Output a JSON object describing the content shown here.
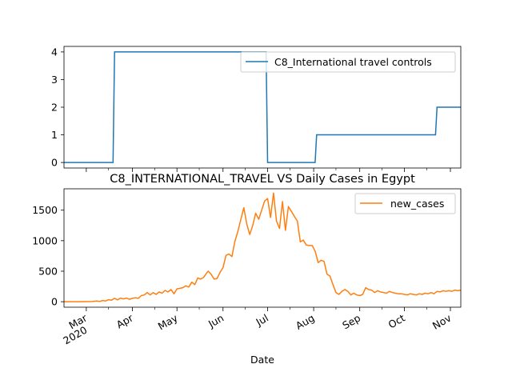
{
  "chart_data": [
    {
      "type": "line",
      "title": "",
      "xlabel": "",
      "ylabel": "",
      "ylim": [
        -0.2,
        4.2
      ],
      "yticks": [
        0,
        1,
        2,
        3,
        4
      ],
      "legend_placement": "top-right",
      "grid": false,
      "series": [
        {
          "name": "C8_International travel controls",
          "color": "#1f77b4",
          "points": [
            [
              "2020-02-15",
              0
            ],
            [
              "2020-03-19",
              0
            ],
            [
              "2020-03-20",
              4
            ],
            [
              "2020-06-30",
              4
            ],
            [
              "2020-07-01",
              0
            ],
            [
              "2020-08-02",
              0
            ],
            [
              "2020-08-03",
              1
            ],
            [
              "2020-10-22",
              1
            ],
            [
              "2020-10-23",
              2
            ],
            [
              "2020-11-08",
              2
            ]
          ]
        }
      ]
    },
    {
      "type": "line",
      "title": "C8_INTERNATIONAL_TRAVEL VS Daily Cases in Egypt",
      "xlabel": "Date",
      "ylabel": "",
      "ylim": [
        -90,
        1850
      ],
      "yticks": [
        0,
        500,
        1000,
        1500
      ],
      "legend_placement": "top-right",
      "grid": false,
      "x_tick_labels": [
        {
          "date": "2020-03-01",
          "label": "Mar",
          "sub": "2020"
        },
        {
          "date": "2020-04-01",
          "label": "Apr",
          "sub": ""
        },
        {
          "date": "2020-05-01",
          "label": "May",
          "sub": ""
        },
        {
          "date": "2020-06-01",
          "label": "Jun",
          "sub": ""
        },
        {
          "date": "2020-07-01",
          "label": "Jul",
          "sub": ""
        },
        {
          "date": "2020-08-01",
          "label": "Aug",
          "sub": ""
        },
        {
          "date": "2020-09-01",
          "label": "Sep",
          "sub": ""
        },
        {
          "date": "2020-10-01",
          "label": "Oct",
          "sub": ""
        },
        {
          "date": "2020-11-01",
          "label": "Nov",
          "sub": ""
        }
      ],
      "series": [
        {
          "name": "new_cases",
          "color": "#ff7f0e",
          "points": [
            [
              "2020-02-15",
              0
            ],
            [
              "2020-02-25",
              0
            ],
            [
              "2020-03-05",
              3
            ],
            [
              "2020-03-08",
              12
            ],
            [
              "2020-03-10",
              5
            ],
            [
              "2020-03-12",
              20
            ],
            [
              "2020-03-14",
              12
            ],
            [
              "2020-03-16",
              33
            ],
            [
              "2020-03-18",
              25
            ],
            [
              "2020-03-20",
              55
            ],
            [
              "2020-03-22",
              30
            ],
            [
              "2020-03-24",
              60
            ],
            [
              "2020-03-26",
              45
            ],
            [
              "2020-03-28",
              60
            ],
            [
              "2020-03-30",
              40
            ],
            [
              "2020-04-01",
              55
            ],
            [
              "2020-04-03",
              65
            ],
            [
              "2020-04-05",
              55
            ],
            [
              "2020-04-07",
              100
            ],
            [
              "2020-04-09",
              110
            ],
            [
              "2020-04-11",
              150
            ],
            [
              "2020-04-13",
              110
            ],
            [
              "2020-04-15",
              150
            ],
            [
              "2020-04-17",
              120
            ],
            [
              "2020-04-19",
              160
            ],
            [
              "2020-04-21",
              140
            ],
            [
              "2020-04-23",
              185
            ],
            [
              "2020-04-25",
              160
            ],
            [
              "2020-04-27",
              200
            ],
            [
              "2020-04-29",
              130
            ],
            [
              "2020-05-01",
              210
            ],
            [
              "2020-05-03",
              220
            ],
            [
              "2020-05-05",
              230
            ],
            [
              "2020-05-07",
              260
            ],
            [
              "2020-05-09",
              240
            ],
            [
              "2020-05-11",
              320
            ],
            [
              "2020-05-13",
              280
            ],
            [
              "2020-05-15",
              390
            ],
            [
              "2020-05-17",
              370
            ],
            [
              "2020-05-19",
              400
            ],
            [
              "2020-05-21",
              470
            ],
            [
              "2020-05-22",
              500
            ],
            [
              "2020-05-24",
              450
            ],
            [
              "2020-05-26",
              370
            ],
            [
              "2020-05-28",
              380
            ],
            [
              "2020-05-30",
              480
            ],
            [
              "2020-06-01",
              560
            ],
            [
              "2020-06-03",
              760
            ],
            [
              "2020-06-05",
              780
            ],
            [
              "2020-06-07",
              740
            ],
            [
              "2020-06-09",
              990
            ],
            [
              "2020-06-11",
              1150
            ],
            [
              "2020-06-13",
              1350
            ],
            [
              "2020-06-15",
              1540
            ],
            [
              "2020-06-17",
              1270
            ],
            [
              "2020-06-19",
              1100
            ],
            [
              "2020-06-21",
              1250
            ],
            [
              "2020-06-23",
              1450
            ],
            [
              "2020-06-25",
              1350
            ],
            [
              "2020-06-27",
              1500
            ],
            [
              "2020-06-29",
              1650
            ],
            [
              "2020-07-01",
              1690
            ],
            [
              "2020-07-03",
              1380
            ],
            [
              "2020-07-05",
              1780
            ],
            [
              "2020-07-07",
              1320
            ],
            [
              "2020-07-09",
              1200
            ],
            [
              "2020-07-11",
              1640
            ],
            [
              "2020-07-13",
              1170
            ],
            [
              "2020-07-15",
              1560
            ],
            [
              "2020-07-17",
              1480
            ],
            [
              "2020-07-19",
              1400
            ],
            [
              "2020-07-21",
              1320
            ],
            [
              "2020-07-23",
              980
            ],
            [
              "2020-07-25",
              1010
            ],
            [
              "2020-07-27",
              930
            ],
            [
              "2020-07-29",
              920
            ],
            [
              "2020-07-31",
              920
            ],
            [
              "2020-08-02",
              830
            ],
            [
              "2020-08-04",
              640
            ],
            [
              "2020-08-06",
              680
            ],
            [
              "2020-08-08",
              660
            ],
            [
              "2020-08-10",
              450
            ],
            [
              "2020-08-12",
              420
            ],
            [
              "2020-08-14",
              280
            ],
            [
              "2020-08-16",
              150
            ],
            [
              "2020-08-18",
              120
            ],
            [
              "2020-08-20",
              170
            ],
            [
              "2020-08-22",
              200
            ],
            [
              "2020-08-24",
              170
            ],
            [
              "2020-08-26",
              110
            ],
            [
              "2020-08-28",
              140
            ],
            [
              "2020-08-30",
              110
            ],
            [
              "2020-09-01",
              100
            ],
            [
              "2020-09-03",
              120
            ],
            [
              "2020-09-05",
              230
            ],
            [
              "2020-09-07",
              200
            ],
            [
              "2020-09-09",
              190
            ],
            [
              "2020-09-11",
              150
            ],
            [
              "2020-09-13",
              180
            ],
            [
              "2020-09-15",
              160
            ],
            [
              "2020-09-17",
              150
            ],
            [
              "2020-09-19",
              140
            ],
            [
              "2020-09-21",
              170
            ],
            [
              "2020-09-23",
              150
            ],
            [
              "2020-09-25",
              140
            ],
            [
              "2020-09-27",
              130
            ],
            [
              "2020-09-29",
              130
            ],
            [
              "2020-10-01",
              120
            ],
            [
              "2020-10-03",
              110
            ],
            [
              "2020-10-05",
              130
            ],
            [
              "2020-10-07",
              120
            ],
            [
              "2020-10-09",
              110
            ],
            [
              "2020-10-11",
              130
            ],
            [
              "2020-10-13",
              120
            ],
            [
              "2020-10-15",
              140
            ],
            [
              "2020-10-17",
              130
            ],
            [
              "2020-10-19",
              150
            ],
            [
              "2020-10-21",
              130
            ],
            [
              "2020-10-23",
              170
            ],
            [
              "2020-10-25",
              160
            ],
            [
              "2020-10-27",
              180
            ],
            [
              "2020-10-29",
              170
            ],
            [
              "2020-10-31",
              180
            ],
            [
              "2020-11-02",
              170
            ],
            [
              "2020-11-04",
              190
            ],
            [
              "2020-11-06",
              180
            ],
            [
              "2020-11-08",
              190
            ]
          ]
        }
      ]
    }
  ]
}
